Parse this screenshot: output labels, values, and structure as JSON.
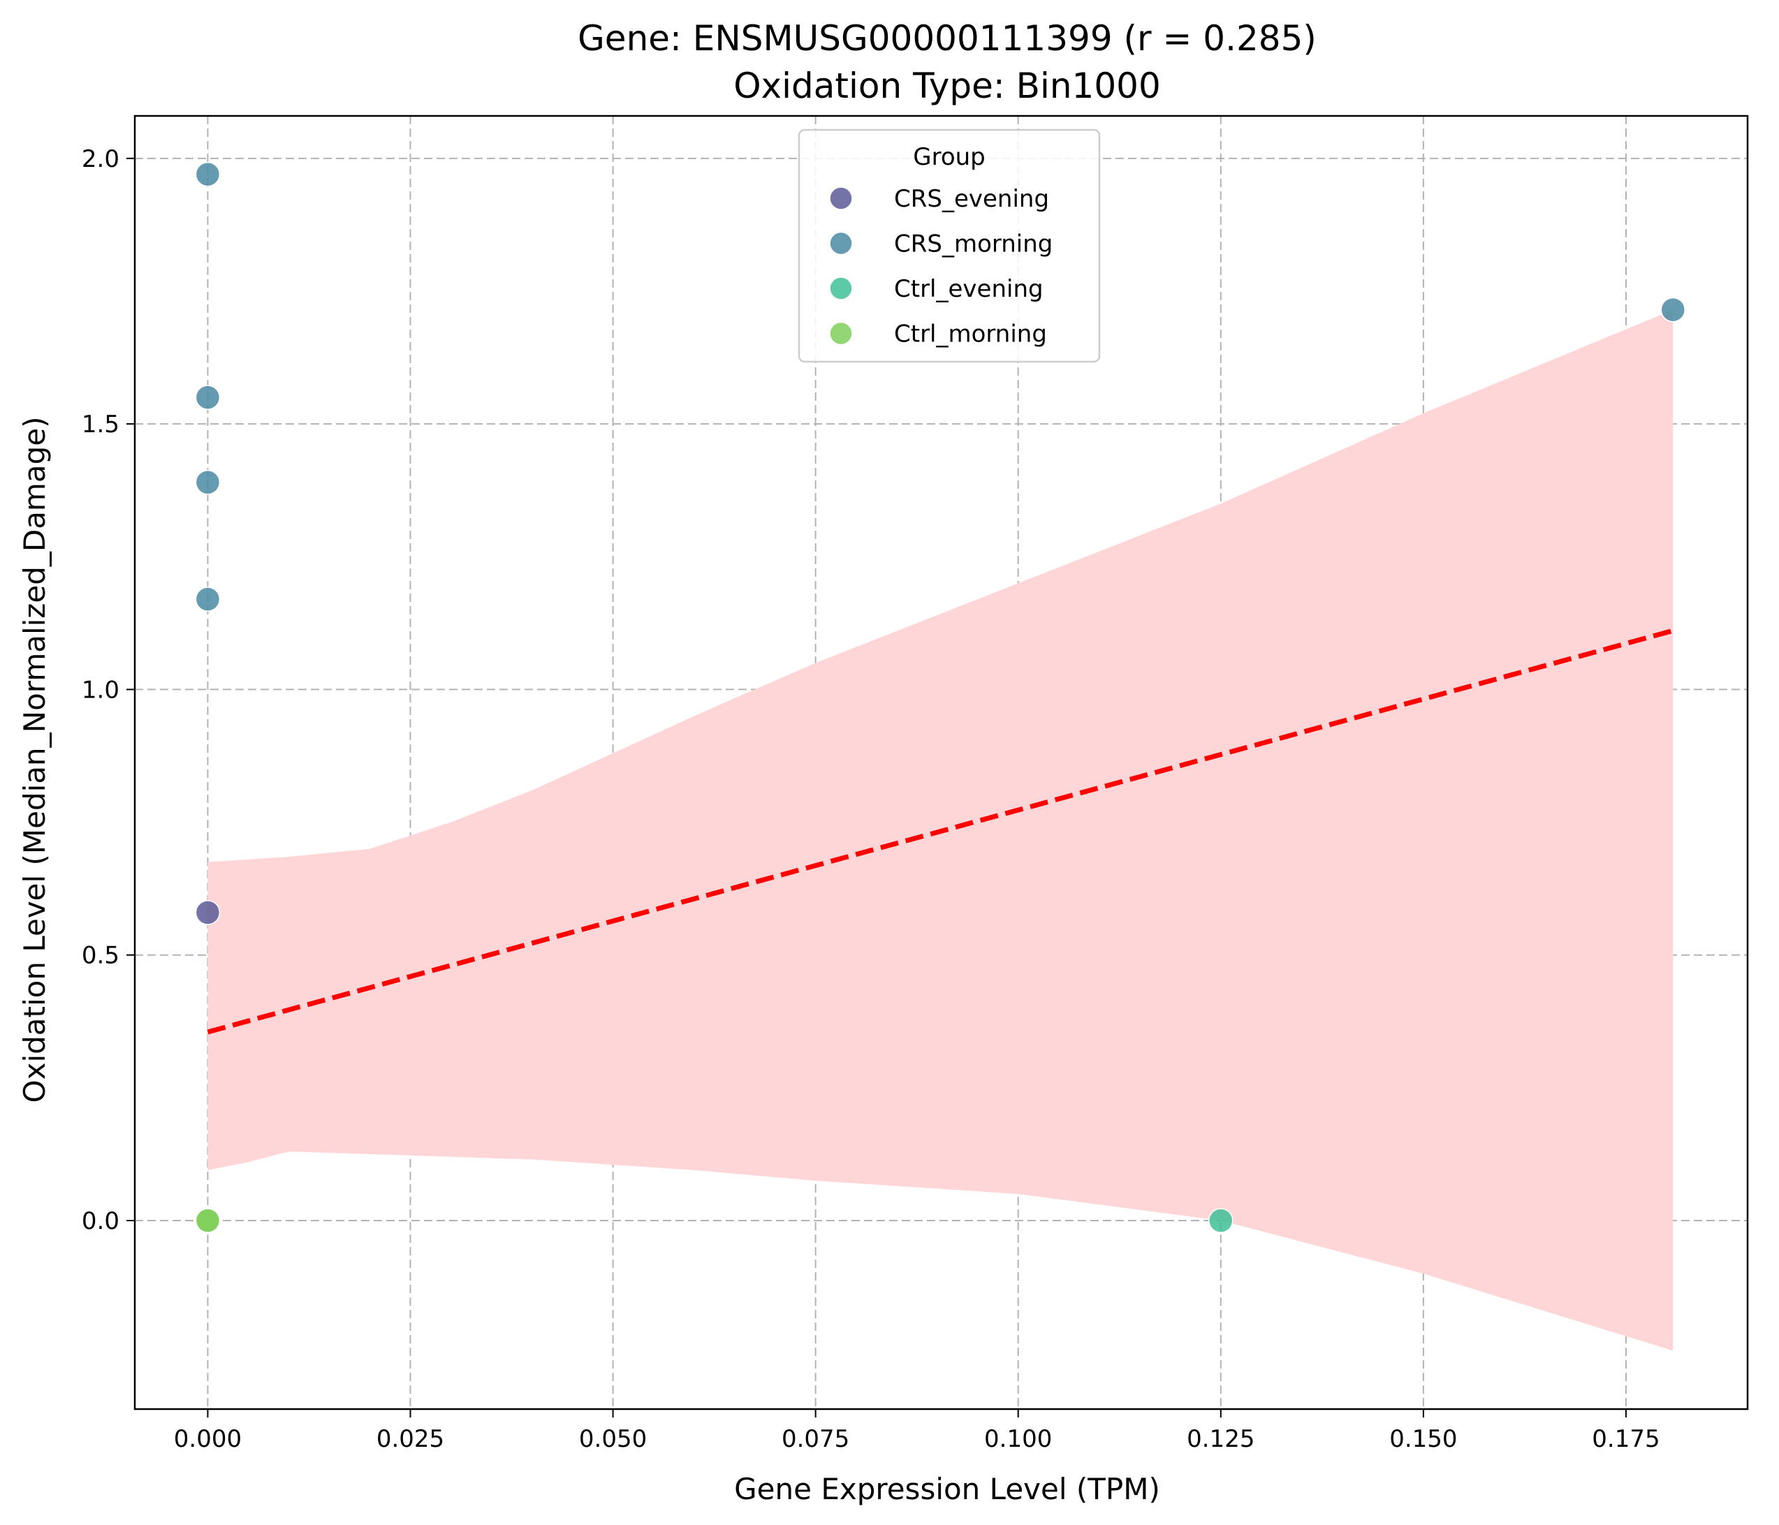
{
  "chart_data": {
    "type": "scatter",
    "title": "Gene: ENSMUSG00000111399 (r = 0.285)",
    "subtitle": "Oxidation Type: Bin1000",
    "xlabel": "Gene Expression Level (TPM)",
    "ylabel": "Oxidation Level (Median_Normalized_Damage)",
    "xlim": [
      -0.009,
      0.19
    ],
    "ylim": [
      -0.355,
      2.08
    ],
    "x_ticks": [
      0.0,
      0.025,
      0.05,
      0.075,
      0.1,
      0.125,
      0.15,
      0.175
    ],
    "x_tick_labels": [
      "0.000",
      "0.025",
      "0.050",
      "0.075",
      "0.100",
      "0.125",
      "0.150",
      "0.175"
    ],
    "y_ticks": [
      0.0,
      0.5,
      1.0,
      1.5,
      2.0
    ],
    "y_tick_labels": [
      "0.0",
      "0.5",
      "1.0",
      "1.5",
      "2.0"
    ],
    "grid": true,
    "legend": {
      "title": "Group",
      "position": "upper-center",
      "entries": [
        "CRS_evening",
        "CRS_morning",
        "Ctrl_evening",
        "Ctrl_morning"
      ]
    },
    "colors": {
      "CRS_evening": "#5b5b98",
      "CRS_morning": "#4a8aa2",
      "Ctrl_evening": "#3fbf98",
      "Ctrl_morning": "#7fd05a",
      "regression_line": "#ff0000",
      "confidence_band": "#ffd6d8"
    },
    "series": [
      {
        "name": "CRS_evening",
        "points": [
          [
            0.0,
            0.58
          ]
        ]
      },
      {
        "name": "CRS_morning",
        "points": [
          [
            0.0,
            1.97
          ],
          [
            0.0,
            1.55
          ],
          [
            0.0,
            1.39
          ],
          [
            0.0,
            1.17
          ],
          [
            0.1808,
            1.715
          ]
        ]
      },
      {
        "name": "Ctrl_evening",
        "points": [
          [
            0.125,
            0.0
          ]
        ]
      },
      {
        "name": "Ctrl_morning",
        "points": [
          [
            0.0,
            0.0
          ],
          [
            0.0,
            0.0
          ]
        ]
      }
    ],
    "regression": {
      "slope": 4.18,
      "intercept": 0.355,
      "x_range": [
        0.0,
        0.1808
      ]
    },
    "confidence_band": [
      {
        "x": 0.0,
        "lower": 0.095,
        "upper": 0.675
      },
      {
        "x": 0.005,
        "lower": 0.11,
        "upper": 0.68
      },
      {
        "x": 0.01,
        "lower": 0.13,
        "upper": 0.685
      },
      {
        "x": 0.02,
        "lower": 0.125,
        "upper": 0.7
      },
      {
        "x": 0.03,
        "lower": 0.12,
        "upper": 0.75
      },
      {
        "x": 0.04,
        "lower": 0.115,
        "upper": 0.81
      },
      {
        "x": 0.05,
        "lower": 0.105,
        "upper": 0.88
      },
      {
        "x": 0.06,
        "lower": 0.095,
        "upper": 0.95
      },
      {
        "x": 0.075,
        "lower": 0.075,
        "upper": 1.05
      },
      {
        "x": 0.1,
        "lower": 0.05,
        "upper": 1.2
      },
      {
        "x": 0.125,
        "lower": 0.0,
        "upper": 1.35
      },
      {
        "x": 0.15,
        "lower": -0.1,
        "upper": 1.52
      },
      {
        "x": 0.1808,
        "lower": -0.245,
        "upper": 1.715
      }
    ]
  }
}
